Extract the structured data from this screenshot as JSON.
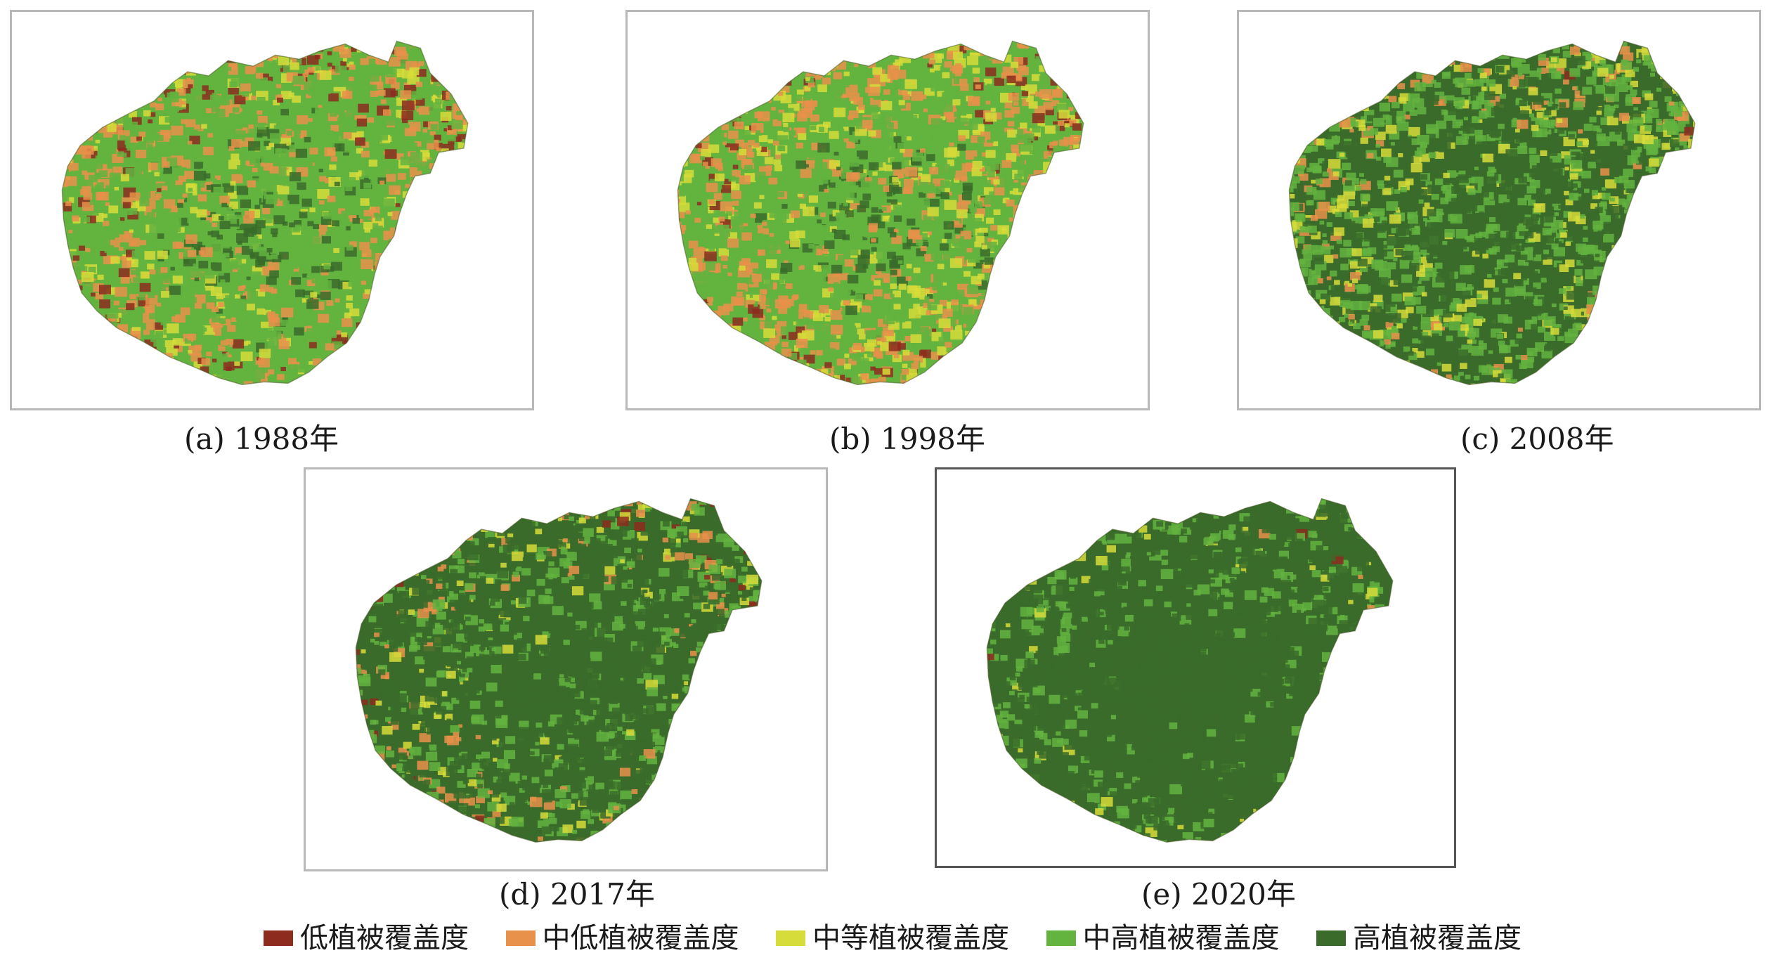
{
  "legend": [
    {
      "label": "低植被覆盖度",
      "color": "#8c2b1e"
    },
    {
      "label": "中低植被覆盖度",
      "color": "#e8914a"
    },
    {
      "label": "中等植被覆盖度",
      "color": "#d6dc3a"
    },
    {
      "label": "中高植被覆盖度",
      "color": "#63b33f"
    },
    {
      "label": "高植被覆盖度",
      "color": "#3a6b2a"
    }
  ],
  "maps": [
    {
      "caption": "(a) 1988年",
      "coverage_mix": {
        "low": 0.12,
        "mid_low": 0.22,
        "mid": 0.1,
        "mid_high": 0.38,
        "high": 0.18
      }
    },
    {
      "caption": "(b) 1998年",
      "coverage_mix": {
        "low": 0.1,
        "mid_low": 0.26,
        "mid": 0.14,
        "mid_high": 0.38,
        "high": 0.12
      }
    },
    {
      "caption": "(c) 2008年",
      "coverage_mix": {
        "low": 0.02,
        "mid_low": 0.1,
        "mid": 0.12,
        "mid_high": 0.36,
        "high": 0.4
      }
    },
    {
      "caption": "(d) 2017年",
      "coverage_mix": {
        "low": 0.04,
        "mid_low": 0.1,
        "mid": 0.06,
        "mid_high": 0.2,
        "high": 0.6
      }
    },
    {
      "caption": "(e) 2020年",
      "coverage_mix": {
        "low": 0.02,
        "mid_low": 0.01,
        "mid": 0.05,
        "mid_high": 0.17,
        "high": 0.75
      }
    }
  ]
}
